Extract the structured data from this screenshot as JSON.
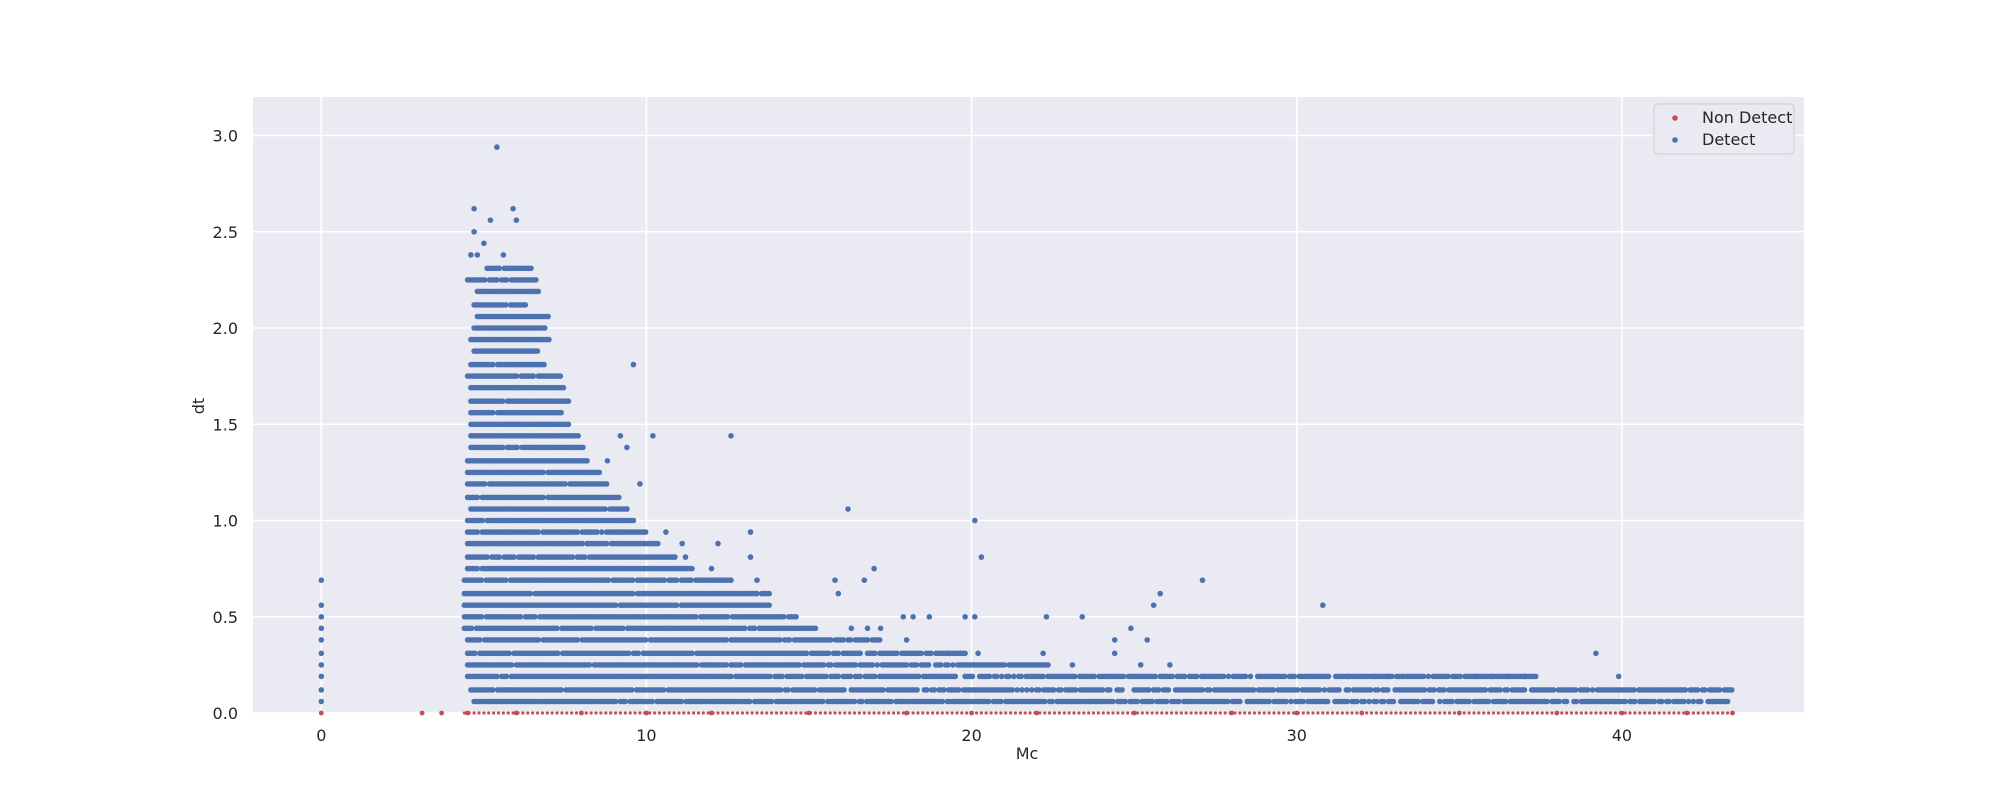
{
  "chart_data": {
    "type": "scatter",
    "title": "",
    "xlabel": "Mc",
    "ylabel": "dt",
    "xlim": [
      -2.1,
      45.6
    ],
    "ylim": [
      0.0,
      3.2
    ],
    "xticks": [
      0,
      10,
      20,
      30,
      40
    ],
    "yticks": [
      0.0,
      0.5,
      1.0,
      1.5,
      2.0,
      2.5,
      3.0
    ],
    "xtick_labels": [
      "0",
      "10",
      "20",
      "30",
      "40"
    ],
    "ytick_labels": [
      "0.0",
      "0.5",
      "1.0",
      "1.5",
      "2.0",
      "2.5",
      "3.0"
    ],
    "grid": true,
    "legend_position": "top-right",
    "series": [
      {
        "name": "Non Detect",
        "color": "#c44e52",
        "points": [
          [
            0,
            0.0
          ],
          [
            3.1,
            0.0
          ],
          [
            3.7,
            0.0
          ],
          [
            4.5,
            0.0
          ],
          [
            6,
            0.0
          ],
          [
            8,
            0.0
          ],
          [
            10,
            0.0
          ],
          [
            12,
            0.0
          ],
          [
            15,
            0.0
          ],
          [
            18,
            0.0
          ],
          [
            20,
            0.0
          ],
          [
            22,
            0.0
          ],
          [
            25,
            0.0
          ],
          [
            28,
            0.0
          ],
          [
            30,
            0.0
          ],
          [
            32,
            0.0
          ],
          [
            35,
            0.0
          ],
          [
            38,
            0.0
          ],
          [
            40,
            0.0
          ],
          [
            42,
            0.0
          ],
          [
            43.4,
            0.0
          ]
        ]
      },
      {
        "name": "Detect",
        "color": "#4c72b0",
        "zero_column": {
          "x": 0,
          "y_values": [
            0.06,
            0.12,
            0.19,
            0.25,
            0.31,
            0.38,
            0.44,
            0.5,
            0.56,
            0.69
          ]
        },
        "bands": [
          {
            "y": 0.06,
            "x_min": 4.7,
            "x_max": 43.3
          },
          {
            "y": 0.12,
            "x_min": 4.6,
            "x_max": 43.4
          },
          {
            "y": 0.19,
            "x_min": 4.5,
            "x_max": 37.4
          },
          {
            "y": 0.25,
            "x_min": 4.5,
            "x_max": 22.4
          },
          {
            "y": 0.31,
            "x_min": 4.5,
            "x_max": 19.8
          },
          {
            "y": 0.38,
            "x_min": 4.5,
            "x_max": 17.2
          },
          {
            "y": 0.44,
            "x_min": 4.4,
            "x_max": 15.2
          },
          {
            "y": 0.5,
            "x_min": 4.4,
            "x_max": 14.6
          },
          {
            "y": 0.56,
            "x_min": 4.4,
            "x_max": 13.8
          },
          {
            "y": 0.62,
            "x_min": 4.4,
            "x_max": 13.8
          },
          {
            "y": 0.69,
            "x_min": 4.4,
            "x_max": 12.6
          },
          {
            "y": 0.75,
            "x_min": 4.5,
            "x_max": 11.4
          },
          {
            "y": 0.81,
            "x_min": 4.5,
            "x_max": 10.9
          },
          {
            "y": 0.88,
            "x_min": 4.5,
            "x_max": 10.4
          },
          {
            "y": 0.94,
            "x_min": 4.5,
            "x_max": 10.0
          },
          {
            "y": 1.0,
            "x_min": 4.5,
            "x_max": 9.6
          },
          {
            "y": 1.06,
            "x_min": 4.6,
            "x_max": 9.4
          },
          {
            "y": 1.12,
            "x_min": 4.5,
            "x_max": 9.2
          },
          {
            "y": 1.19,
            "x_min": 4.5,
            "x_max": 8.8
          },
          {
            "y": 1.25,
            "x_min": 4.5,
            "x_max": 8.6
          },
          {
            "y": 1.31,
            "x_min": 4.5,
            "x_max": 8.2
          },
          {
            "y": 1.38,
            "x_min": 4.6,
            "x_max": 8.1
          },
          {
            "y": 1.44,
            "x_min": 4.6,
            "x_max": 7.9
          },
          {
            "y": 1.5,
            "x_min": 4.6,
            "x_max": 7.6
          },
          {
            "y": 1.56,
            "x_min": 4.6,
            "x_max": 7.4
          },
          {
            "y": 1.62,
            "x_min": 4.6,
            "x_max": 7.6
          },
          {
            "y": 1.69,
            "x_min": 4.6,
            "x_max": 7.5
          },
          {
            "y": 1.75,
            "x_min": 4.5,
            "x_max": 7.4
          },
          {
            "y": 1.81,
            "x_min": 4.6,
            "x_max": 6.9
          },
          {
            "y": 1.88,
            "x_min": 4.7,
            "x_max": 6.7
          },
          {
            "y": 1.94,
            "x_min": 4.6,
            "x_max": 7.0
          },
          {
            "y": 2.0,
            "x_min": 4.7,
            "x_max": 6.9
          },
          {
            "y": 2.06,
            "x_min": 4.8,
            "x_max": 7.0
          },
          {
            "y": 2.12,
            "x_min": 4.7,
            "x_max": 6.3
          },
          {
            "y": 2.19,
            "x_min": 4.8,
            "x_max": 6.7
          },
          {
            "y": 2.25,
            "x_min": 4.5,
            "x_max": 6.6
          },
          {
            "y": 2.31,
            "x_min": 5.1,
            "x_max": 6.5
          }
        ],
        "isolated_points": [
          [
            5.4,
            2.94
          ],
          [
            4.7,
            2.62
          ],
          [
            5.9,
            2.62
          ],
          [
            5.2,
            2.56
          ],
          [
            6.0,
            2.56
          ],
          [
            4.7,
            2.5
          ],
          [
            5.0,
            2.44
          ],
          [
            4.6,
            2.38
          ],
          [
            4.8,
            2.38
          ],
          [
            5.6,
            2.38
          ],
          [
            9.6,
            1.81
          ],
          [
            9.2,
            1.44
          ],
          [
            10.2,
            1.44
          ],
          [
            12.6,
            1.44
          ],
          [
            9.4,
            1.38
          ],
          [
            8.8,
            1.31
          ],
          [
            9.8,
            1.19
          ],
          [
            9.4,
            1.06
          ],
          [
            10.6,
            0.94
          ],
          [
            13.2,
            0.94
          ],
          [
            11.1,
            0.88
          ],
          [
            12.2,
            0.88
          ],
          [
            11.2,
            0.81
          ],
          [
            13.2,
            0.81
          ],
          [
            20.3,
            0.81
          ],
          [
            12.0,
            0.75
          ],
          [
            17.0,
            0.75
          ],
          [
            12.6,
            0.69
          ],
          [
            13.4,
            0.69
          ],
          [
            15.8,
            0.69
          ],
          [
            16.7,
            0.69
          ],
          [
            27.1,
            0.69
          ],
          [
            15.9,
            0.62
          ],
          [
            25.8,
            0.62
          ],
          [
            25.6,
            0.56
          ],
          [
            30.8,
            0.56
          ],
          [
            16.2,
            1.06
          ],
          [
            20.1,
            1.0
          ],
          [
            17.9,
            0.5
          ],
          [
            18.2,
            0.5
          ],
          [
            18.7,
            0.5
          ],
          [
            19.8,
            0.5
          ],
          [
            20.1,
            0.5
          ],
          [
            22.3,
            0.5
          ],
          [
            23.4,
            0.5
          ],
          [
            16.3,
            0.44
          ],
          [
            16.8,
            0.44
          ],
          [
            17.2,
            0.44
          ],
          [
            24.9,
            0.44
          ],
          [
            18.0,
            0.38
          ],
          [
            24.4,
            0.38
          ],
          [
            25.4,
            0.38
          ],
          [
            19.3,
            0.31
          ],
          [
            20.2,
            0.31
          ],
          [
            22.2,
            0.31
          ],
          [
            24.4,
            0.31
          ],
          [
            39.2,
            0.31
          ],
          [
            23.1,
            0.25
          ],
          [
            25.2,
            0.25
          ],
          [
            26.1,
            0.25
          ],
          [
            31.6,
            0.19
          ],
          [
            32.4,
            0.19
          ],
          [
            32.8,
            0.19
          ],
          [
            33.4,
            0.19
          ],
          [
            35.5,
            0.19
          ],
          [
            36.0,
            0.19
          ],
          [
            36.5,
            0.19
          ],
          [
            37.0,
            0.19
          ],
          [
            39.9,
            0.19
          ]
        ]
      }
    ]
  }
}
